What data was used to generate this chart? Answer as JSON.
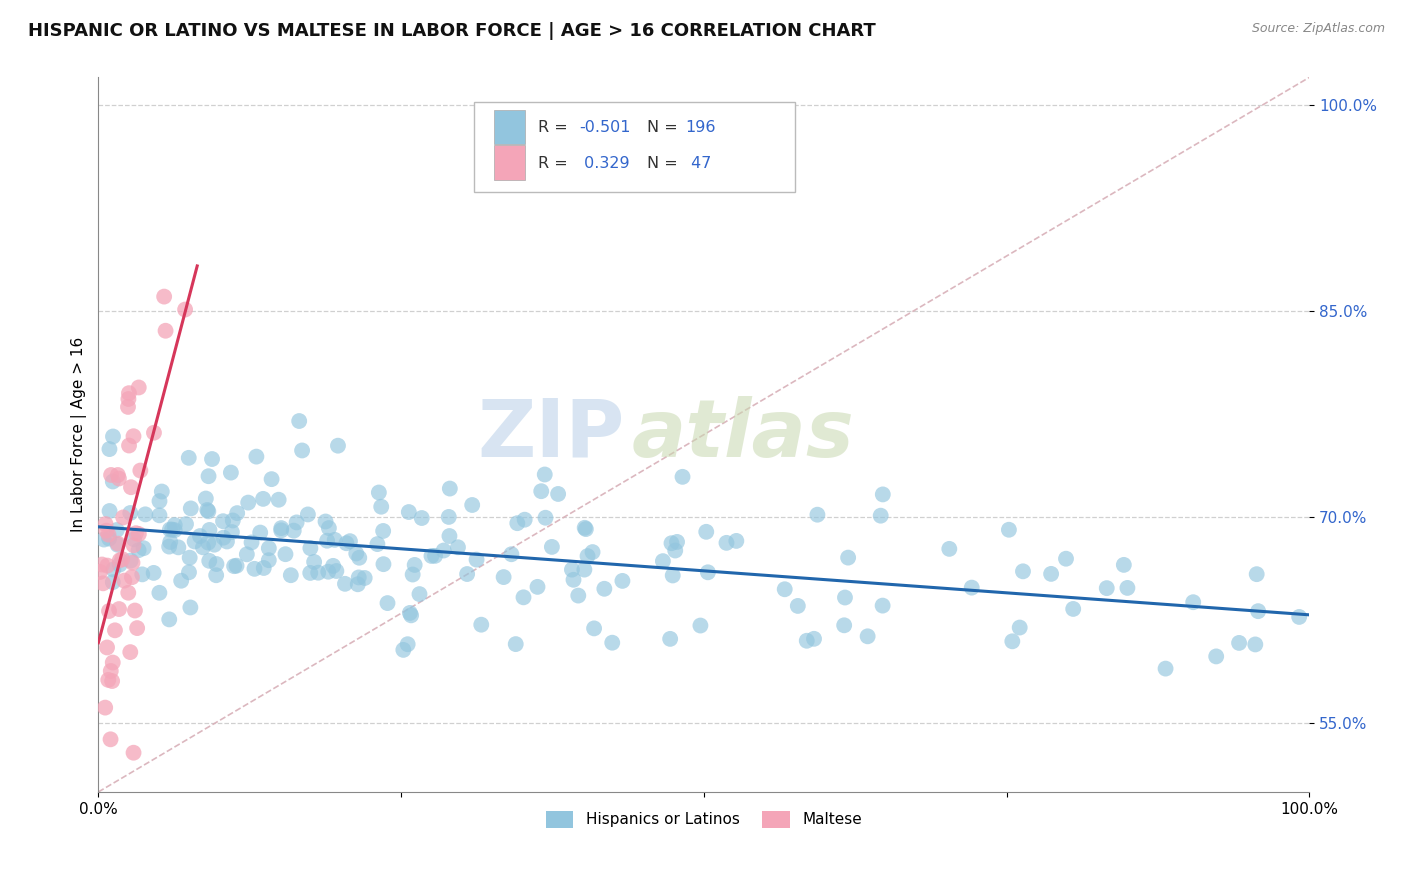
{
  "title": "HISPANIC OR LATINO VS MALTESE IN LABOR FORCE | AGE > 16 CORRELATION CHART",
  "source": "Source: ZipAtlas.com",
  "ylabel": "In Labor Force | Age > 16",
  "xlim": [
    0.0,
    1.0
  ],
  "ylim": [
    0.5,
    1.02
  ],
  "yticks": [
    0.55,
    0.7,
    0.85,
    1.0
  ],
  "ytick_labels": [
    "55.0%",
    "70.0%",
    "85.0%",
    "100.0%"
  ],
  "blue_color": "#92c5de",
  "pink_color": "#f4a5b8",
  "blue_line_color": "#2166ac",
  "pink_line_color": "#d6365a",
  "ref_line_color": "#d8b0b8",
  "legend_r_blue": "-0.501",
  "legend_n_blue": "196",
  "legend_r_pink": "0.329",
  "legend_n_pink": "47",
  "legend_label_blue": "Hispanics or Latinos",
  "legend_label_pink": "Maltese",
  "blue_r": -0.501,
  "blue_n": 196,
  "pink_r": 0.329,
  "pink_n": 47,
  "watermark_zip": "ZIP",
  "watermark_atlas": "atlas",
  "background_color": "#ffffff",
  "grid_color": "#d0d0d0",
  "title_fontsize": 13,
  "axis_label_fontsize": 11,
  "tick_fontsize": 11,
  "legend_value_color": "#3366cc",
  "legend_label_color": "#555555"
}
